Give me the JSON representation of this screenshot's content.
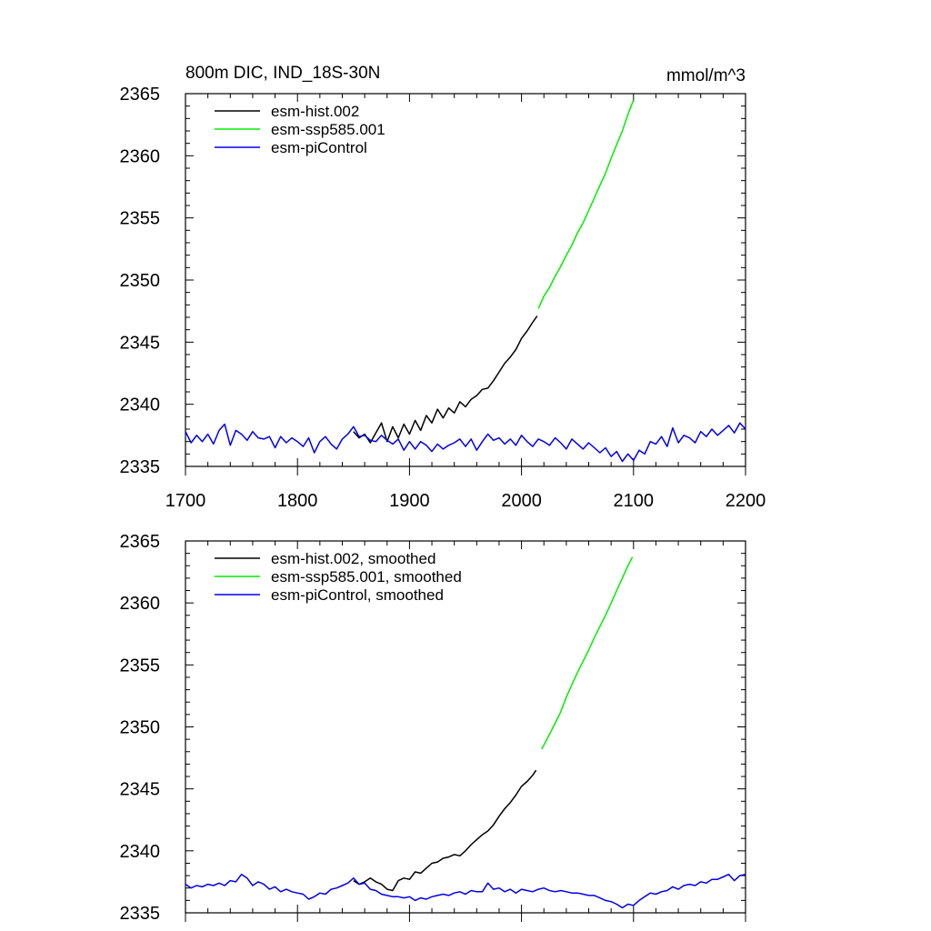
{
  "chart_data": [
    {
      "type": "line",
      "title": "800m DIC, IND_18S-30N",
      "units": "mmol/m^3",
      "xlim": [
        1700,
        2200
      ],
      "ylim": [
        2335,
        2365
      ],
      "xticks": [
        1700,
        1800,
        1900,
        2000,
        2100,
        2200
      ],
      "yticks": [
        2335,
        2340,
        2345,
        2350,
        2355,
        2360,
        2365
      ],
      "xtick_labels": [
        "1700",
        "1800",
        "1900",
        "2000",
        "2100",
        "2200"
      ],
      "ytick_labels": [
        "2335",
        "2340",
        "2345",
        "2350",
        "2355",
        "2360",
        "2365"
      ],
      "legend_position": "top-left",
      "series": [
        {
          "name": "esm-hist.002",
          "color": "#000000",
          "x": [
            1850,
            1855,
            1860,
            1865,
            1870,
            1875,
            1880,
            1885,
            1890,
            1895,
            1900,
            1905,
            1910,
            1915,
            1920,
            1925,
            1930,
            1935,
            1940,
            1945,
            1950,
            1955,
            1960,
            1965,
            1970,
            1975,
            1980,
            1985,
            1990,
            1995,
            2000,
            2005,
            2010,
            2014
          ],
          "y": [
            2337.8,
            2337.3,
            2337.6,
            2336.9,
            2337.7,
            2338.5,
            2337.0,
            2338.2,
            2337.3,
            2338.4,
            2337.6,
            2338.7,
            2337.9,
            2339.1,
            2338.5,
            2339.6,
            2338.9,
            2339.7,
            2339.3,
            2340.2,
            2339.8,
            2340.4,
            2340.7,
            2341.2,
            2341.3,
            2341.9,
            2342.6,
            2343.3,
            2343.8,
            2344.4,
            2345.3,
            2345.9,
            2346.6,
            2347.1
          ]
        },
        {
          "name": "esm-ssp585.001",
          "color": "#00ee00",
          "x": [
            2015,
            2020,
            2025,
            2030,
            2035,
            2040,
            2045,
            2050,
            2055,
            2060,
            2065,
            2070,
            2075,
            2080,
            2085,
            2090,
            2095,
            2100
          ],
          "y": [
            2347.7,
            2348.7,
            2349.4,
            2350.3,
            2351.1,
            2352.0,
            2352.8,
            2353.8,
            2354.6,
            2355.6,
            2356.6,
            2357.6,
            2358.6,
            2359.8,
            2360.9,
            2362.0,
            2363.3,
            2364.5
          ]
        },
        {
          "name": "esm-piControl",
          "color": "#0000ee",
          "x": [
            1700,
            1705,
            1710,
            1715,
            1720,
            1725,
            1730,
            1735,
            1740,
            1745,
            1750,
            1755,
            1760,
            1765,
            1770,
            1775,
            1780,
            1785,
            1790,
            1795,
            1800,
            1805,
            1810,
            1815,
            1820,
            1825,
            1830,
            1835,
            1840,
            1845,
            1850,
            1855,
            1860,
            1865,
            1870,
            1875,
            1880,
            1885,
            1890,
            1895,
            1900,
            1905,
            1910,
            1915,
            1920,
            1925,
            1930,
            1935,
            1940,
            1945,
            1950,
            1955,
            1960,
            1965,
            1970,
            1975,
            1980,
            1985,
            1990,
            1995,
            2000,
            2005,
            2010,
            2015,
            2020,
            2025,
            2030,
            2035,
            2040,
            2045,
            2050,
            2055,
            2060,
            2065,
            2070,
            2075,
            2080,
            2085,
            2090,
            2095,
            2100,
            2105,
            2110,
            2115,
            2120,
            2125,
            2130,
            2135,
            2140,
            2145,
            2150,
            2155,
            2160,
            2165,
            2170,
            2175,
            2180,
            2185,
            2190,
            2195,
            2200
          ],
          "y": [
            2337.8,
            2336.9,
            2337.5,
            2337.0,
            2337.6,
            2336.8,
            2337.9,
            2338.4,
            2336.7,
            2337.9,
            2337.6,
            2337.1,
            2337.8,
            2337.3,
            2337.2,
            2337.4,
            2336.5,
            2337.4,
            2336.9,
            2337.3,
            2337.0,
            2336.6,
            2337.3,
            2336.1,
            2337.0,
            2337.4,
            2336.8,
            2336.4,
            2337.2,
            2337.6,
            2338.2,
            2337.4,
            2337.5,
            2337.1,
            2337.0,
            2337.5,
            2337.1,
            2336.8,
            2337.2,
            2336.3,
            2337.0,
            2336.4,
            2337.0,
            2336.7,
            2336.2,
            2336.8,
            2336.4,
            2336.7,
            2336.9,
            2337.2,
            2336.6,
            2337.2,
            2336.3,
            2337.0,
            2337.6,
            2337.1,
            2337.3,
            2336.8,
            2337.2,
            2336.7,
            2337.5,
            2337.0,
            2336.6,
            2337.2,
            2337.0,
            2336.7,
            2337.3,
            2336.9,
            2336.4,
            2337.2,
            2336.8,
            2336.4,
            2336.9,
            2336.5,
            2336.1,
            2336.5,
            2335.8,
            2336.2,
            2335.4,
            2336.0,
            2335.5,
            2336.3,
            2336.0,
            2337.0,
            2336.8,
            2337.4,
            2336.6,
            2338.1,
            2336.9,
            2337.5,
            2337.3,
            2336.9,
            2337.8,
            2337.4,
            2338.0,
            2337.5,
            2337.9,
            2338.3,
            2337.7,
            2338.5,
            2338.0
          ]
        }
      ]
    },
    {
      "type": "line",
      "xlim": [
        1700,
        2200
      ],
      "ylim": [
        2335,
        2365
      ],
      "xticks": [
        1700,
        1800,
        1900,
        2000,
        2100,
        2200
      ],
      "yticks": [
        2335,
        2340,
        2345,
        2350,
        2355,
        2360,
        2365
      ],
      "ytick_labels": [
        "2335",
        "2340",
        "2345",
        "2350",
        "2355",
        "2360",
        "2365"
      ],
      "legend_position": "top-left",
      "series": [
        {
          "name": "esm-hist.002, smoothed",
          "color": "#000000",
          "x": [
            1850,
            1855,
            1860,
            1865,
            1870,
            1875,
            1880,
            1885,
            1890,
            1895,
            1900,
            1905,
            1910,
            1915,
            1920,
            1925,
            1930,
            1935,
            1940,
            1945,
            1950,
            1955,
            1960,
            1965,
            1970,
            1975,
            1980,
            1985,
            1990,
            1995,
            2000,
            2005,
            2010,
            2013
          ],
          "y": [
            2337.6,
            2337.3,
            2337.5,
            2337.8,
            2337.5,
            2337.3,
            2336.9,
            2336.8,
            2337.6,
            2337.8,
            2337.7,
            2338.3,
            2338.2,
            2338.6,
            2339.0,
            2339.1,
            2339.4,
            2339.5,
            2339.7,
            2339.6,
            2340.0,
            2340.5,
            2340.9,
            2341.3,
            2341.6,
            2342.1,
            2342.8,
            2343.4,
            2343.9,
            2344.5,
            2345.2,
            2345.6,
            2346.1,
            2346.5
          ]
        },
        {
          "name": "esm-ssp585.001, smoothed",
          "color": "#00ee00",
          "x": [
            2018,
            2025,
            2030,
            2035,
            2040,
            2045,
            2050,
            2055,
            2060,
            2065,
            2070,
            2075,
            2080,
            2085,
            2090,
            2095,
            2099
          ],
          "y": [
            2348.2,
            2349.4,
            2350.3,
            2351.2,
            2352.4,
            2353.4,
            2354.4,
            2355.3,
            2356.2,
            2357.2,
            2358.1,
            2359.0,
            2360.0,
            2361.0,
            2362.0,
            2363.0,
            2363.7
          ]
        },
        {
          "name": "esm-piControl, smoothed",
          "color": "#0000ee",
          "x": [
            1700,
            1705,
            1710,
            1715,
            1720,
            1725,
            1730,
            1735,
            1740,
            1745,
            1750,
            1755,
            1760,
            1765,
            1770,
            1775,
            1780,
            1785,
            1790,
            1795,
            1800,
            1805,
            1810,
            1815,
            1820,
            1825,
            1830,
            1835,
            1840,
            1845,
            1850,
            1855,
            1860,
            1865,
            1870,
            1875,
            1880,
            1885,
            1890,
            1895,
            1900,
            1905,
            1910,
            1915,
            1920,
            1925,
            1930,
            1935,
            1940,
            1945,
            1950,
            1955,
            1960,
            1965,
            1970,
            1975,
            1980,
            1985,
            1990,
            1995,
            2000,
            2005,
            2010,
            2015,
            2020,
            2025,
            2030,
            2035,
            2040,
            2045,
            2050,
            2055,
            2060,
            2065,
            2070,
            2075,
            2080,
            2085,
            2090,
            2095,
            2100,
            2105,
            2110,
            2115,
            2120,
            2125,
            2130,
            2135,
            2140,
            2145,
            2150,
            2155,
            2160,
            2165,
            2170,
            2175,
            2180,
            2185,
            2190,
            2195,
            2200
          ],
          "y": [
            2337.3,
            2337.0,
            2337.2,
            2337.1,
            2337.3,
            2337.2,
            2337.4,
            2337.2,
            2337.6,
            2337.5,
            2338.1,
            2337.8,
            2337.2,
            2337.5,
            2337.3,
            2336.9,
            2337.1,
            2336.7,
            2336.9,
            2336.7,
            2336.6,
            2336.5,
            2336.1,
            2336.3,
            2336.6,
            2336.5,
            2336.9,
            2337.0,
            2337.2,
            2337.4,
            2337.8,
            2337.3,
            2337.4,
            2336.9,
            2336.8,
            2336.5,
            2336.4,
            2336.3,
            2336.3,
            2336.2,
            2336.3,
            2336.0,
            2336.2,
            2336.1,
            2336.3,
            2336.4,
            2336.5,
            2336.4,
            2336.6,
            2336.7,
            2336.5,
            2336.8,
            2336.7,
            2336.7,
            2337.4,
            2336.9,
            2337.0,
            2336.7,
            2336.9,
            2336.6,
            2336.9,
            2336.8,
            2336.7,
            2336.9,
            2337.0,
            2336.8,
            2336.7,
            2336.8,
            2336.7,
            2336.6,
            2336.6,
            2336.5,
            2336.4,
            2336.4,
            2336.2,
            2336.0,
            2335.9,
            2335.7,
            2335.4,
            2335.7,
            2335.6,
            2336.0,
            2336.3,
            2336.6,
            2336.5,
            2336.7,
            2336.8,
            2337.1,
            2336.9,
            2337.2,
            2337.3,
            2337.2,
            2337.5,
            2337.4,
            2337.7,
            2337.7,
            2337.9,
            2338.1,
            2337.6,
            2338.0,
            2338.1
          ]
        }
      ]
    }
  ]
}
